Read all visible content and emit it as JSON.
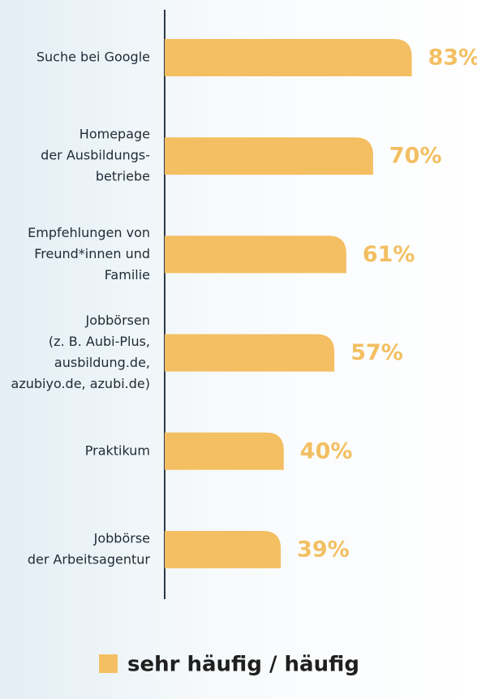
{
  "chart_data": {
    "type": "bar",
    "orientation": "horizontal",
    "categories": [
      [
        "Suche bei Google"
      ],
      [
        "Homepage",
        "der Ausbildungs-",
        "betriebe"
      ],
      [
        "Empfehlungen von",
        "Freund*innen und",
        "Familie"
      ],
      [
        "Jobbörsen",
        "(z. B. Aubi-Plus,",
        "ausbildung.de,",
        "azubiyo.de, azubi.de)"
      ],
      [
        "Praktikum"
      ],
      [
        "Jobbörse",
        "der Arbeitsagentur"
      ]
    ],
    "series": [
      {
        "name": "sehr häufig / häufig",
        "color": "#f3bf62",
        "values": [
          83,
          70,
          61,
          57,
          40,
          39
        ],
        "value_labels": [
          "83%",
          "70%",
          "61%",
          "57%",
          "40%",
          "39%"
        ]
      }
    ]
  }
}
